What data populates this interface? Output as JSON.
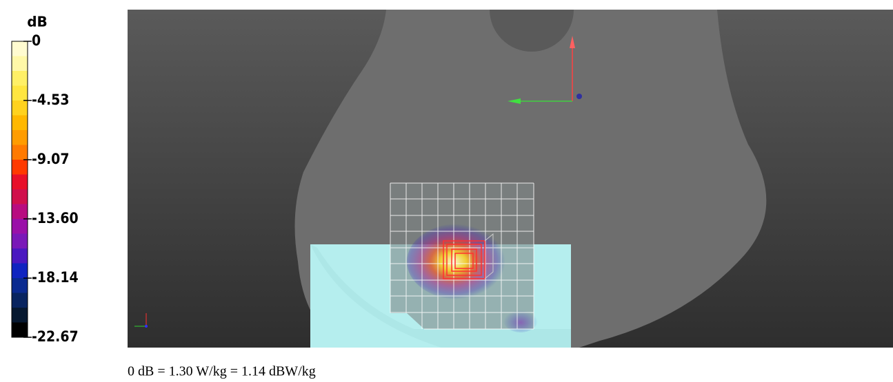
{
  "colorbar": {
    "title": "dB",
    "lim": [
      -22.67,
      0
    ],
    "ticks": [
      {
        "value": 0,
        "label": "0"
      },
      {
        "value": -4.53,
        "label": "-4.53"
      },
      {
        "value": -9.07,
        "label": "-9.07"
      },
      {
        "value": -13.6,
        "label": "-13.60"
      },
      {
        "value": -18.14,
        "label": "-18.14"
      },
      {
        "value": -22.67,
        "label": "-22.67"
      }
    ],
    "colors": [
      "#fffbd0",
      "#fff8a8",
      "#fff066",
      "#ffe640",
      "#ffd21e",
      "#ffb800",
      "#ff9c00",
      "#ff7a00",
      "#ff3a00",
      "#e8102a",
      "#d0104c",
      "#b80c80",
      "#9a10a8",
      "#7a18b8",
      "#4a18c0",
      "#1024c0",
      "#0a2a90",
      "#082460",
      "#061830",
      "#000000"
    ]
  },
  "caption": "0 dB = 1.30 W/kg = 1.14 dBW/kg"
}
